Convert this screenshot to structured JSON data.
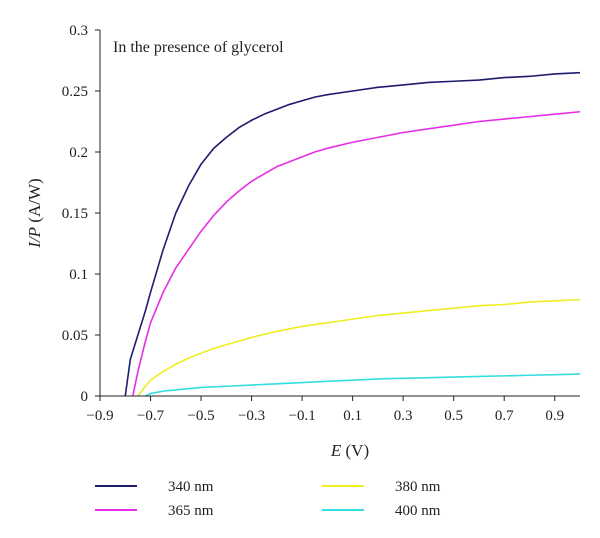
{
  "chart_data": {
    "type": "line",
    "annotation": "In the presence of glycerol",
    "xlabel": {
      "italic": "E",
      "unit": " (V)"
    },
    "ylabel": {
      "italic": "I/P",
      "unit": " (A/W)"
    },
    "xlim": [
      -0.9,
      1.0
    ],
    "ylim": [
      0,
      0.3
    ],
    "xticks": [
      -0.9,
      -0.7,
      -0.5,
      -0.3,
      -0.1,
      0.1,
      0.3,
      0.5,
      0.7,
      0.9
    ],
    "xtick_labels": [
      "−0.9",
      "−0.7",
      "−0.5",
      "−0.3",
      "−0.1",
      "0.1",
      "0.3",
      "0.5",
      "0.7",
      "0.9"
    ],
    "yticks": [
      0,
      0.05,
      0.1,
      0.15,
      0.2,
      0.25,
      0.3
    ],
    "ytick_labels": [
      "0",
      "0.05",
      "0.1",
      "0.15",
      "0.2",
      "0.25",
      "0.3"
    ],
    "grid": false,
    "legend_position": "bottom",
    "series": [
      {
        "name": "340 nm",
        "color": "#1f1b6e",
        "x": [
          -0.8,
          -0.78,
          -0.75,
          -0.72,
          -0.7,
          -0.65,
          -0.6,
          -0.55,
          -0.5,
          -0.45,
          -0.4,
          -0.35,
          -0.3,
          -0.25,
          -0.2,
          -0.15,
          -0.1,
          -0.05,
          0.0,
          0.1,
          0.2,
          0.3,
          0.4,
          0.5,
          0.6,
          0.7,
          0.8,
          0.9,
          1.0
        ],
        "y": [
          0.0,
          0.03,
          0.05,
          0.07,
          0.085,
          0.12,
          0.15,
          0.172,
          0.19,
          0.203,
          0.212,
          0.22,
          0.226,
          0.231,
          0.235,
          0.239,
          0.242,
          0.245,
          0.247,
          0.25,
          0.253,
          0.255,
          0.257,
          0.258,
          0.259,
          0.261,
          0.262,
          0.264,
          0.265
        ]
      },
      {
        "name": "365 nm",
        "color": "#e52ee5",
        "x": [
          -0.77,
          -0.75,
          -0.72,
          -0.7,
          -0.65,
          -0.6,
          -0.55,
          -0.5,
          -0.45,
          -0.4,
          -0.35,
          -0.3,
          -0.25,
          -0.2,
          -0.15,
          -0.1,
          -0.05,
          0.0,
          0.1,
          0.2,
          0.3,
          0.4,
          0.5,
          0.6,
          0.7,
          0.8,
          0.9,
          1.0
        ],
        "y": [
          0.0,
          0.02,
          0.045,
          0.06,
          0.085,
          0.105,
          0.12,
          0.135,
          0.148,
          0.159,
          0.168,
          0.176,
          0.182,
          0.188,
          0.192,
          0.196,
          0.2,
          0.203,
          0.208,
          0.212,
          0.216,
          0.219,
          0.222,
          0.225,
          0.227,
          0.229,
          0.231,
          0.233
        ]
      },
      {
        "name": "380 nm",
        "color": "#eeee22",
        "x": [
          -0.75,
          -0.72,
          -0.7,
          -0.65,
          -0.6,
          -0.55,
          -0.5,
          -0.45,
          -0.4,
          -0.3,
          -0.2,
          -0.1,
          0.0,
          0.1,
          0.2,
          0.3,
          0.4,
          0.5,
          0.6,
          0.7,
          0.8,
          0.9,
          1.0
        ],
        "y": [
          0.0,
          0.008,
          0.013,
          0.02,
          0.026,
          0.031,
          0.035,
          0.039,
          0.042,
          0.048,
          0.053,
          0.057,
          0.06,
          0.063,
          0.066,
          0.068,
          0.07,
          0.072,
          0.074,
          0.075,
          0.077,
          0.078,
          0.079
        ]
      },
      {
        "name": "400 nm",
        "color": "#33dede",
        "x": [
          -0.72,
          -0.7,
          -0.65,
          -0.6,
          -0.55,
          -0.5,
          -0.4,
          -0.3,
          -0.2,
          -0.1,
          0.0,
          0.1,
          0.2,
          0.3,
          0.4,
          0.5,
          0.6,
          0.7,
          0.8,
          0.9,
          1.0
        ],
        "y": [
          0.0,
          0.002,
          0.004,
          0.005,
          0.006,
          0.007,
          0.008,
          0.009,
          0.01,
          0.011,
          0.012,
          0.013,
          0.014,
          0.0145,
          0.015,
          0.0155,
          0.016,
          0.0165,
          0.017,
          0.0175,
          0.018
        ]
      }
    ]
  }
}
